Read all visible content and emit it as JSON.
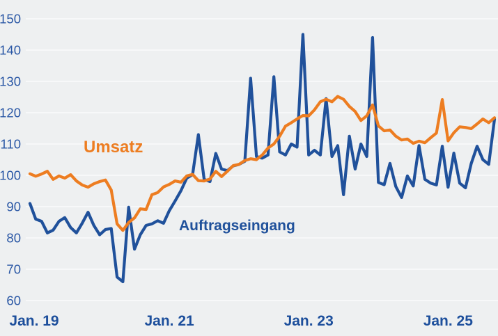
{
  "chart_data": {
    "type": "line",
    "title": "",
    "background_color": "#eef0f1",
    "grid": {
      "horizontal": true,
      "vertical": false,
      "color": "#fafbfc"
    },
    "x_axis": {
      "start_month": "Jan 2019",
      "end_month": "Sep 2025",
      "frequency": "monthly",
      "points_per_series": 81,
      "tick_labels": [
        "Jan. 19",
        "Jan. 21",
        "Jan. 23",
        "Jan. 25"
      ],
      "tick_month_indices": [
        0,
        24,
        48,
        72
      ],
      "label_color": "#1d4f9c"
    },
    "y_axis": {
      "min": 60,
      "max": 150,
      "step": 10,
      "tick_labels": [
        "60",
        "70",
        "80",
        "90",
        "100",
        "110",
        "120",
        "130",
        "140",
        "150"
      ],
      "label_color": "#2a57a5"
    },
    "series": [
      {
        "name": "Umsatz",
        "color": "#ED7D21",
        "values": [
          100.5,
          99.7,
          100.4,
          101.3,
          98.7,
          99.8,
          99.1,
          100.2,
          98.2,
          96.9,
          96.2,
          97.3,
          98,
          98.5,
          95.3,
          84.5,
          82.4,
          84.9,
          86.4,
          89.3,
          89.1,
          93.8,
          94.5,
          96.3,
          97.1,
          98.2,
          97.8,
          99.8,
          100.3,
          98.3,
          98.2,
          98.8,
          101.3,
          99.6,
          101.3,
          103.1,
          103.5,
          104.7,
          105.3,
          105,
          106.5,
          108.7,
          110,
          112.5,
          115.7,
          116.8,
          118,
          119.1,
          119,
          120.9,
          123.5,
          124.3,
          123.5,
          125.2,
          124.3,
          122,
          120.4,
          117.5,
          119,
          122.5,
          115.8,
          114.2,
          114.5,
          112.5,
          111.3,
          111.6,
          110.2,
          110.9,
          110.4,
          112,
          113.5,
          124.2,
          111,
          113.6,
          115.5,
          115.3,
          114.9,
          116.4,
          118,
          116.8,
          118.4
        ]
      },
      {
        "name": "Auftragseingang",
        "color": "#20519B",
        "values": [
          91,
          86,
          85.3,
          81.6,
          82.5,
          85.3,
          86.5,
          83.3,
          81.6,
          84.7,
          88.2,
          84,
          81,
          82.7,
          83,
          67.5,
          66,
          89.8,
          76.4,
          81,
          84,
          84.5,
          85.5,
          84.7,
          88.7,
          91.8,
          95.1,
          99.1,
          100.2,
          113,
          98.7,
          98,
          107,
          102,
          101.5,
          103,
          103.5,
          104.5,
          131,
          106,
          105.5,
          106.5,
          131.5,
          107.5,
          106.5,
          110,
          109,
          145,
          106.5,
          108,
          106.5,
          124.5,
          106,
          109.5,
          93.8,
          112.5,
          102,
          110,
          106,
          144,
          97.7,
          97,
          103.8,
          96.4,
          92.9,
          99.8,
          96.6,
          109.5,
          98.7,
          97.5,
          96.9,
          109.3,
          96.2,
          107.1,
          97.5,
          96,
          103.8,
          109.3,
          105,
          103.5,
          118
        ]
      }
    ]
  }
}
